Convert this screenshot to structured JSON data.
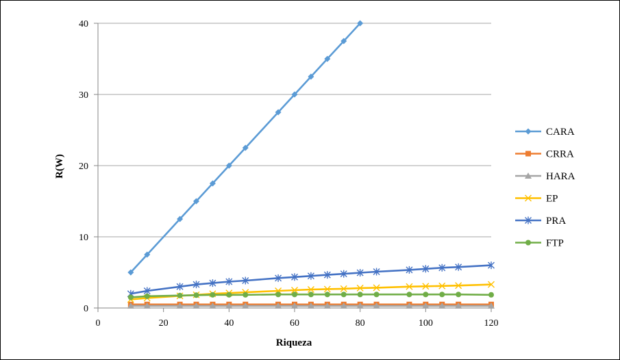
{
  "chart_data": {
    "type": "line",
    "title": "",
    "xlabel": "Riqueza",
    "ylabel": "R(W)",
    "xlim": [
      0,
      120
    ],
    "ylim": [
      0,
      40
    ],
    "xticks": [
      "0",
      "20",
      "40",
      "60",
      "80",
      "100",
      "120"
    ],
    "yticks": [
      "0",
      "10",
      "20",
      "30",
      "40"
    ],
    "grid": "horizontal",
    "legend_position": "right",
    "series": [
      {
        "name": "CARA",
        "color": "#5b9bd5",
        "marker": "diamond",
        "x": [
          10,
          15,
          25,
          30,
          35,
          40,
          45,
          55,
          60,
          65,
          70,
          75,
          80
        ],
        "y": [
          5,
          7.5,
          12.5,
          15,
          17.5,
          20,
          22.5,
          27.5,
          30,
          32.5,
          35,
          37.5,
          40
        ]
      },
      {
        "name": "CRRA",
        "color": "#ed7d31",
        "marker": "square",
        "x": [
          10,
          15,
          25,
          30,
          35,
          40,
          45,
          55,
          60,
          65,
          70,
          75,
          80,
          85,
          95,
          100,
          105,
          110,
          120
        ],
        "y": [
          0.5,
          0.5,
          0.5,
          0.5,
          0.5,
          0.5,
          0.5,
          0.5,
          0.5,
          0.5,
          0.5,
          0.5,
          0.5,
          0.5,
          0.5,
          0.5,
          0.5,
          0.5,
          0.5
        ]
      },
      {
        "name": "HARA",
        "color": "#a5a5a5",
        "marker": "triangle",
        "x": [
          10,
          15,
          25,
          30,
          35,
          40,
          45,
          55,
          60,
          65,
          70,
          75,
          80,
          85,
          95,
          100,
          105,
          110,
          120
        ],
        "y": [
          0.3,
          0.3,
          0.3,
          0.3,
          0.3,
          0.3,
          0.3,
          0.3,
          0.3,
          0.3,
          0.3,
          0.3,
          0.3,
          0.3,
          0.3,
          0.3,
          0.3,
          0.3,
          0.3
        ]
      },
      {
        "name": "EP",
        "color": "#ffc000",
        "marker": "x",
        "x": [
          10,
          15,
          25,
          30,
          35,
          40,
          45,
          55,
          60,
          65,
          70,
          75,
          80,
          85,
          95,
          100,
          105,
          110,
          120
        ],
        "y": [
          1.2,
          1.4,
          1.7,
          1.85,
          2.0,
          2.1,
          2.2,
          2.4,
          2.5,
          2.6,
          2.65,
          2.7,
          2.8,
          2.85,
          3.0,
          3.05,
          3.1,
          3.15,
          3.3
        ]
      },
      {
        "name": "PRA",
        "color": "#4472c4",
        "marker": "asterisk",
        "x": [
          10,
          15,
          25,
          30,
          35,
          40,
          45,
          55,
          60,
          65,
          70,
          75,
          80,
          85,
          95,
          100,
          105,
          110,
          120
        ],
        "y": [
          2.0,
          2.4,
          3.0,
          3.3,
          3.5,
          3.7,
          3.85,
          4.2,
          4.35,
          4.5,
          4.65,
          4.8,
          4.95,
          5.1,
          5.35,
          5.5,
          5.65,
          5.75,
          6.0
        ]
      },
      {
        "name": "FTP",
        "color": "#70ad47",
        "marker": "circle",
        "x": [
          10,
          15,
          25,
          30,
          35,
          40,
          45,
          55,
          60,
          65,
          70,
          75,
          80,
          85,
          95,
          100,
          105,
          110,
          120
        ],
        "y": [
          1.5,
          1.65,
          1.75,
          1.8,
          1.85,
          1.85,
          1.85,
          1.9,
          1.9,
          1.9,
          1.9,
          1.9,
          1.9,
          1.9,
          1.9,
          1.9,
          1.9,
          1.9,
          1.85
        ]
      }
    ]
  }
}
